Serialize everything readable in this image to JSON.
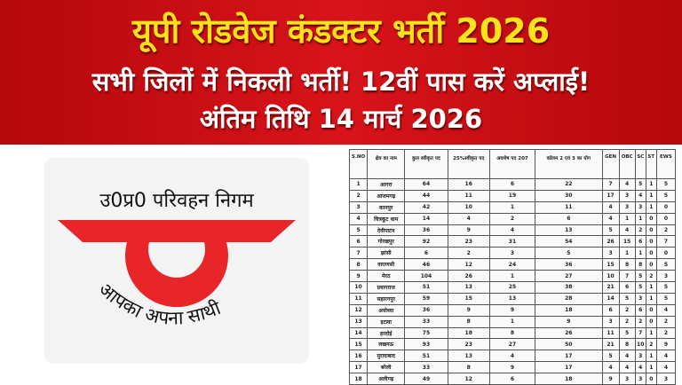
{
  "banner": {
    "title": "यूपी रोडवेज कंडक्टर भर्ती 2026",
    "line2": "सभी जिलों में निकली भर्ती!  12वीं पास करें अप्लाई!",
    "line3": "अंतिम तिथि 14 मार्च 2026"
  },
  "logo": {
    "name": "उ0प्र0 परिवहन निगम",
    "tagline": "आपका अपना साथी",
    "color": "#e8262a"
  },
  "table": {
    "headers": [
      "S.NO",
      "क्षेत्र का नाम",
      "कुल स्वीकृत पद",
      "25%स्वीकृत पद",
      "अवशेष पद 207",
      "कॉलम 2 एवं 3 का योग",
      "GEN",
      "OBC",
      "SC",
      "ST",
      "EWS"
    ],
    "rows": [
      [
        "1",
        "आगरा",
        "64",
        "16",
        "6",
        "22",
        "7",
        "4",
        "5",
        "1",
        "5"
      ],
      [
        "2",
        "आजमगढ़",
        "44",
        "11",
        "19",
        "30",
        "17",
        "3",
        "4",
        "1",
        "5"
      ],
      [
        "3",
        "कानपुर",
        "42",
        "10",
        "1",
        "11",
        "4",
        "3",
        "3",
        "1",
        "0"
      ],
      [
        "4",
        "चित्रकूट धाम",
        "14",
        "4",
        "2",
        "6",
        "4",
        "1",
        "1",
        "0",
        "0"
      ],
      [
        "5",
        "देवीपाटन",
        "36",
        "9",
        "4",
        "13",
        "5",
        "4",
        "2",
        "0",
        "2"
      ],
      [
        "6",
        "गोरखपुर",
        "92",
        "23",
        "31",
        "54",
        "26",
        "15",
        "6",
        "0",
        "7"
      ],
      [
        "7",
        "झांसी",
        "6",
        "2",
        "3",
        "5",
        "3",
        "1",
        "1",
        "0",
        "0"
      ],
      [
        "8",
        "वाराणसी",
        "46",
        "12",
        "24",
        "36",
        "15",
        "8",
        "8",
        "0",
        "5"
      ],
      [
        "9",
        "मेरठ",
        "104",
        "26",
        "1",
        "27",
        "10",
        "7",
        "5",
        "2",
        "3"
      ],
      [
        "10",
        "प्रयागराज",
        "51",
        "13",
        "25",
        "38",
        "21",
        "6",
        "5",
        "1",
        "5"
      ],
      [
        "11",
        "सहारनपुर",
        "59",
        "15",
        "13",
        "28",
        "14",
        "5",
        "3",
        "1",
        "5"
      ],
      [
        "12",
        "अयोध्या",
        "36",
        "9",
        "9",
        "18",
        "6",
        "2",
        "6",
        "0",
        "4"
      ],
      [
        "13",
        "इटावा",
        "33",
        "8",
        "1",
        "9",
        "3",
        "2",
        "2",
        "0",
        "2"
      ],
      [
        "14",
        "हरदोई",
        "75",
        "18",
        "8",
        "26",
        "11",
        "5",
        "7",
        "1",
        "2"
      ],
      [
        "15",
        "लखनऊ",
        "93",
        "23",
        "27",
        "50",
        "21",
        "8",
        "10",
        "2",
        "9"
      ],
      [
        "16",
        "मुरादाबाद",
        "51",
        "13",
        "4",
        "17",
        "5",
        "4",
        "3",
        "1",
        "4"
      ],
      [
        "17",
        "बरेली",
        "33",
        "8",
        "9",
        "17",
        "4",
        "4",
        "4",
        "1",
        "4"
      ],
      [
        "18",
        "अलीगढ़",
        "49",
        "12",
        "6",
        "18",
        "9",
        "3",
        "3",
        "0",
        "3"
      ]
    ]
  }
}
